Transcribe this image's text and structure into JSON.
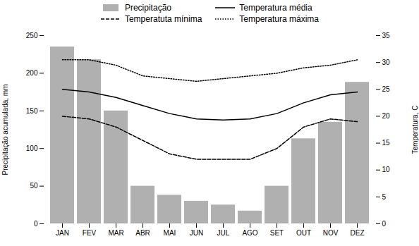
{
  "chart_data": {
    "type": "bar",
    "categories": [
      "JAN",
      "FEV",
      "MAR",
      "ABR",
      "MAI",
      "JUN",
      "JUL",
      "AGO",
      "SET",
      "OUT",
      "NOV",
      "DEZ"
    ],
    "series": [
      {
        "name": "Precipitação",
        "type": "bar",
        "color": "#b0b0b0",
        "values": [
          235,
          218,
          150,
          50,
          38,
          30,
          25,
          17,
          50,
          113,
          135,
          188
        ]
      },
      {
        "name": "Temperatura média",
        "type": "line",
        "axis": "y2",
        "color": "#000000",
        "line_style": "solid",
        "values": [
          25.0,
          24.5,
          23.5,
          22.0,
          20.5,
          19.5,
          19.3,
          19.5,
          20.5,
          22.5,
          24.0,
          24.5
        ]
      },
      {
        "name": "Temperatuta mínima",
        "type": "line",
        "axis": "y2",
        "color": "#000000",
        "line_style": "dashed",
        "values": [
          20.0,
          19.5,
          18.0,
          15.5,
          13.0,
          12.0,
          12.0,
          12.0,
          14.0,
          18.0,
          19.5,
          19.0
        ]
      },
      {
        "name": "Temperatura máxima",
        "type": "line",
        "axis": "y2",
        "color": "#000000",
        "line_style": "dotted",
        "values": [
          30.5,
          30.5,
          29.5,
          27.5,
          27.0,
          26.5,
          27.0,
          27.5,
          28.0,
          29.0,
          29.5,
          30.5
        ]
      }
    ],
    "ylabel": "Precipitação acumulada, mm",
    "y2label": "Temperatura, C",
    "ylim": [
      0,
      250
    ],
    "yticks": [
      0,
      50,
      100,
      150,
      200,
      250
    ],
    "y2lim": [
      0,
      35
    ],
    "y2ticks": [
      0,
      5,
      10,
      15,
      20,
      25,
      30,
      35
    ],
    "legend": "top",
    "grid": false
  }
}
